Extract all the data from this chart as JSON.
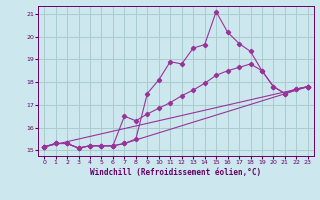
{
  "xlabel": "Windchill (Refroidissement éolien,°C)",
  "bg_color": "#cce8ee",
  "grid_color": "#aacccc",
  "line_color": "#993399",
  "xlim": [
    -0.5,
    23.5
  ],
  "ylim": [
    14.75,
    21.35
  ],
  "xticks": [
    0,
    1,
    2,
    3,
    4,
    5,
    6,
    7,
    8,
    9,
    10,
    11,
    12,
    13,
    14,
    15,
    16,
    17,
    18,
    19,
    20,
    21,
    22,
    23
  ],
  "yticks": [
    15,
    16,
    17,
    18,
    19,
    20,
    21
  ],
  "line1_x": [
    0,
    1,
    2,
    3,
    4,
    5,
    6,
    7,
    8,
    9,
    10,
    11,
    12,
    13,
    14,
    15,
    16,
    17,
    18,
    19,
    20,
    21,
    22,
    23
  ],
  "line1_y": [
    15.15,
    15.3,
    15.3,
    15.1,
    15.2,
    15.2,
    15.2,
    15.3,
    15.5,
    17.5,
    18.1,
    18.9,
    18.8,
    19.5,
    19.65,
    21.1,
    20.2,
    19.7,
    19.35,
    18.5,
    17.8,
    17.5,
    17.7,
    17.8
  ],
  "line2_x": [
    0,
    1,
    2,
    3,
    4,
    5,
    6,
    7,
    8,
    9,
    10,
    11,
    12,
    13,
    14,
    15,
    16,
    17,
    18,
    19,
    20,
    21,
    22,
    23
  ],
  "line2_y": [
    15.15,
    15.3,
    15.3,
    15.1,
    15.2,
    15.2,
    15.2,
    16.5,
    16.3,
    16.6,
    16.85,
    17.1,
    17.4,
    17.65,
    17.95,
    18.3,
    18.5,
    18.65,
    18.8,
    18.5,
    17.8,
    17.5,
    17.7,
    17.8
  ],
  "line3_x": [
    0,
    23
  ],
  "line3_y": [
    15.15,
    17.8
  ],
  "line4_x": [
    0,
    1,
    2,
    3,
    4,
    5,
    6,
    7,
    23
  ],
  "line4_y": [
    15.15,
    15.3,
    15.3,
    15.1,
    15.2,
    15.2,
    15.2,
    15.3,
    17.8
  ]
}
